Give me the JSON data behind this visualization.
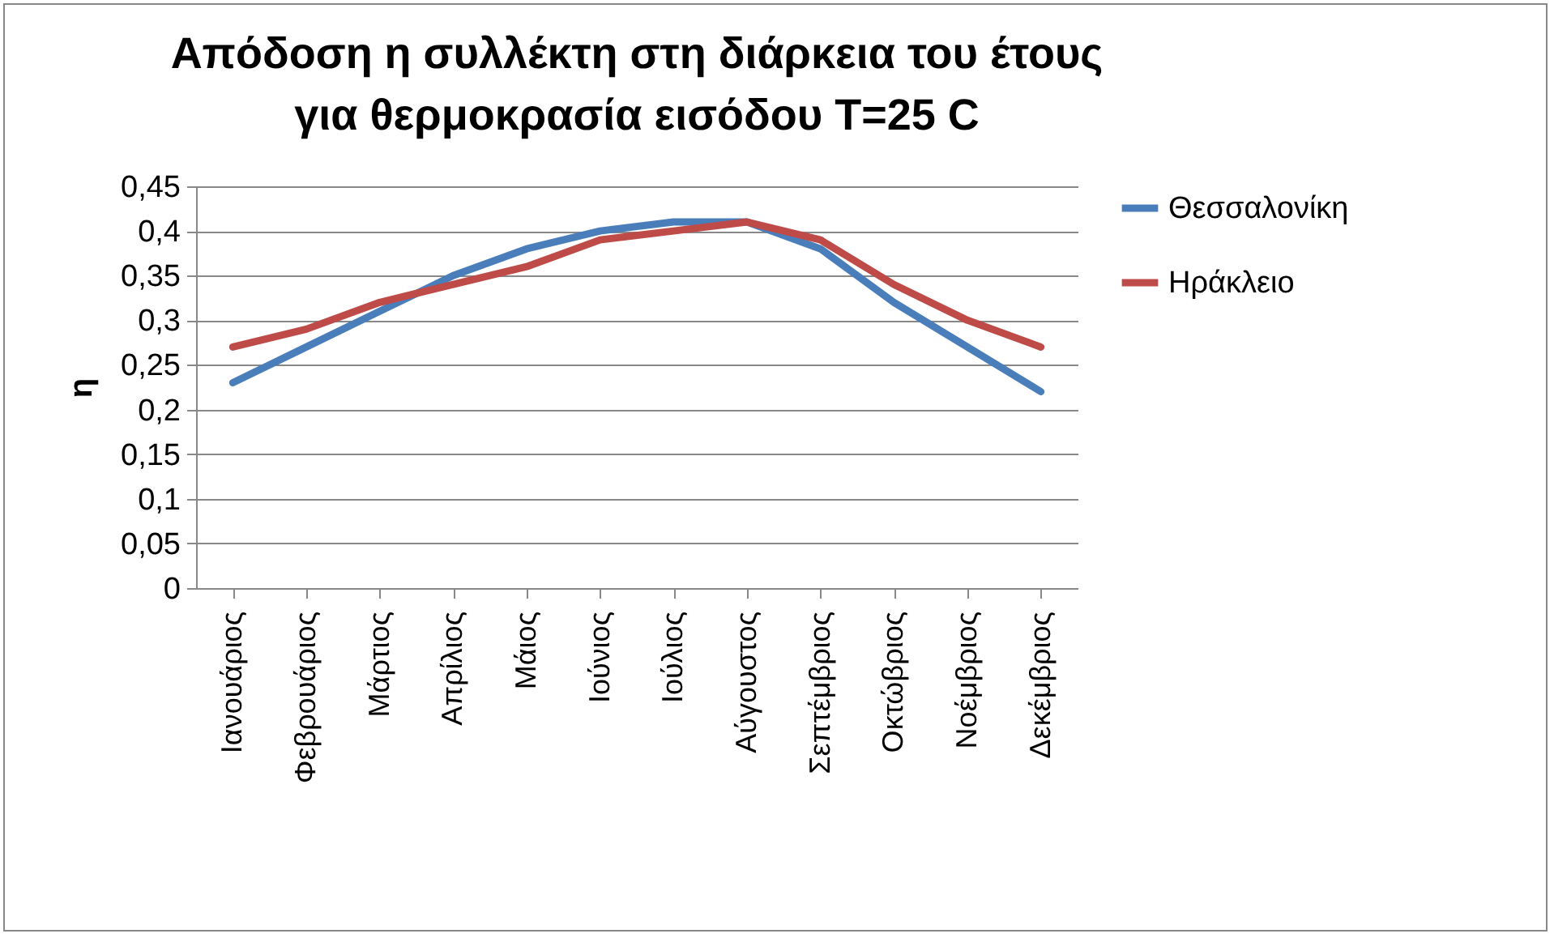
{
  "chart_data": {
    "type": "line",
    "title": "Απόδοση η συλλέκτη στη διάρκεια του έτους\nγια θερμοκρασία εισόδου T=25 C",
    "ylabel": "η",
    "categories": [
      "Ιανουάριος",
      "Φεβρουάριος",
      "Μάρτιος",
      "Απρίλιος",
      "Μάιος",
      "Ιούνιος",
      "Ιούλιος",
      "Αύγουστος",
      "Σεπτέμβριος",
      "Οκτώβριος",
      "Νοέμβριος",
      "Δεκέμβριος"
    ],
    "series": [
      {
        "name": "Θεσσαλονίκη",
        "color": "#4a7ebb",
        "values": [
          0.23,
          0.27,
          0.31,
          0.35,
          0.38,
          0.4,
          0.41,
          0.41,
          0.38,
          0.32,
          0.27,
          0.22
        ]
      },
      {
        "name": "Ηράκλειο",
        "color": "#be4b48",
        "values": [
          0.27,
          0.29,
          0.32,
          0.34,
          0.36,
          0.39,
          0.4,
          0.41,
          0.39,
          0.34,
          0.3,
          0.27
        ]
      }
    ],
    "ylim": [
      0,
      0.45
    ],
    "yticks": [
      0,
      {
        "value": 0.05,
        "label": "0,05"
      },
      {
        "value": 0.1,
        "label": "0,1"
      },
      {
        "value": 0.15,
        "label": "0,15"
      },
      {
        "value": 0.2,
        "label": "0,2"
      },
      {
        "value": 0.25,
        "label": "0,25"
      },
      {
        "value": 0.3,
        "label": "0,3"
      },
      {
        "value": 0.35,
        "label": "0,35"
      },
      {
        "value": 0.4,
        "label": "0,4"
      },
      {
        "value": 0.45,
        "label": "0,45"
      }
    ],
    "grid": "y",
    "legend": "right",
    "marker": "none",
    "line_style": "solid"
  }
}
